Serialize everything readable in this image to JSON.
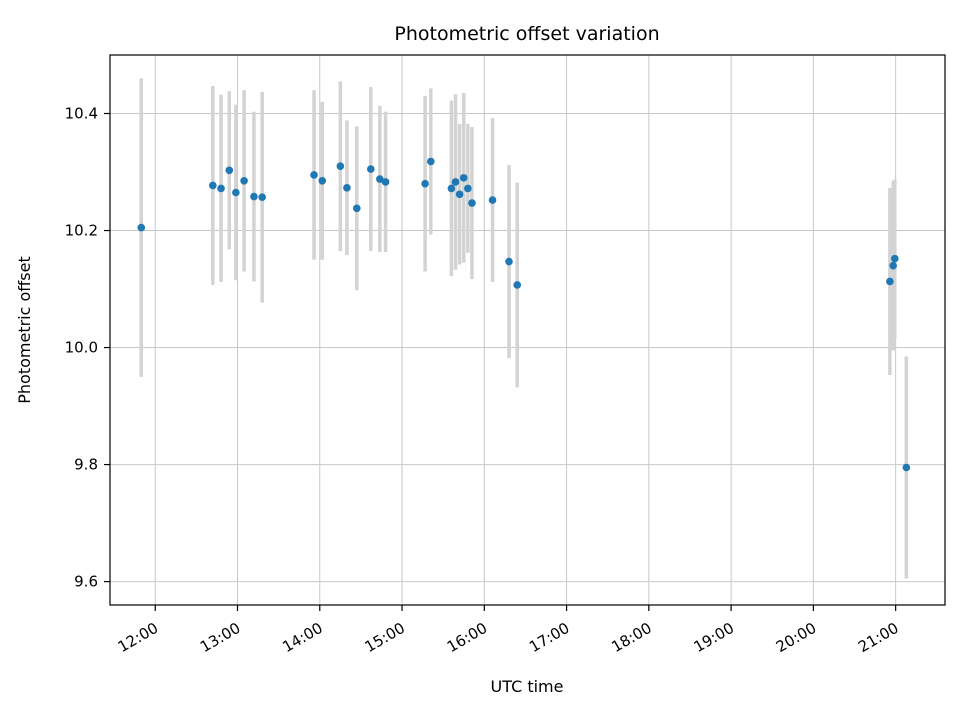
{
  "chart_data": {
    "type": "scatter",
    "title": "Photometric offset variation",
    "xlabel": "UTC time",
    "ylabel": "Photometric offset",
    "xlim": [
      11.45,
      21.6
    ],
    "ylim": [
      9.56,
      10.5
    ],
    "grid": true,
    "legend": "none",
    "marker_color": "#1f77b4",
    "errorbar_color": "#d3d3d3",
    "grid_color": "#c8c8c8",
    "x_ticks": {
      "values": [
        12,
        13,
        14,
        15,
        16,
        17,
        18,
        19,
        20,
        21
      ],
      "labels": [
        "12:00",
        "13:00",
        "14:00",
        "15:00",
        "16:00",
        "17:00",
        "18:00",
        "19:00",
        "20:00",
        "21:00"
      ]
    },
    "y_ticks": {
      "values": [
        9.6,
        9.8,
        10.0,
        10.2,
        10.4
      ],
      "labels": [
        "9.6",
        "9.8",
        "10.0",
        "10.2",
        "10.4"
      ]
    },
    "points_format": "[utc_hour_decimal, photometric_offset, error_halfwidth]",
    "points": [
      [
        11.83,
        10.205,
        0.255
      ],
      [
        12.7,
        10.277,
        0.17
      ],
      [
        12.8,
        10.272,
        0.16
      ],
      [
        12.9,
        10.303,
        0.135
      ],
      [
        12.98,
        10.265,
        0.15
      ],
      [
        13.08,
        10.285,
        0.155
      ],
      [
        13.2,
        10.258,
        0.145
      ],
      [
        13.3,
        10.257,
        0.18
      ],
      [
        13.93,
        10.295,
        0.145
      ],
      [
        14.03,
        10.285,
        0.135
      ],
      [
        14.25,
        10.31,
        0.145
      ],
      [
        14.33,
        10.273,
        0.115
      ],
      [
        14.45,
        10.238,
        0.14
      ],
      [
        14.62,
        10.305,
        0.14
      ],
      [
        14.73,
        10.288,
        0.125
      ],
      [
        14.8,
        10.283,
        0.12
      ],
      [
        15.28,
        10.28,
        0.15
      ],
      [
        15.35,
        10.318,
        0.125
      ],
      [
        15.6,
        10.272,
        0.15
      ],
      [
        15.65,
        10.283,
        0.15
      ],
      [
        15.7,
        10.262,
        0.12
      ],
      [
        15.75,
        10.29,
        0.145
      ],
      [
        15.8,
        10.272,
        0.11
      ],
      [
        15.85,
        10.247,
        0.13
      ],
      [
        16.1,
        10.252,
        0.14
      ],
      [
        16.3,
        10.147,
        0.165
      ],
      [
        16.4,
        10.107,
        0.175
      ],
      [
        20.93,
        10.113,
        0.16
      ],
      [
        20.97,
        10.14,
        0.145
      ],
      [
        20.99,
        10.152,
        0.135
      ],
      [
        21.13,
        9.795,
        0.19
      ]
    ]
  }
}
